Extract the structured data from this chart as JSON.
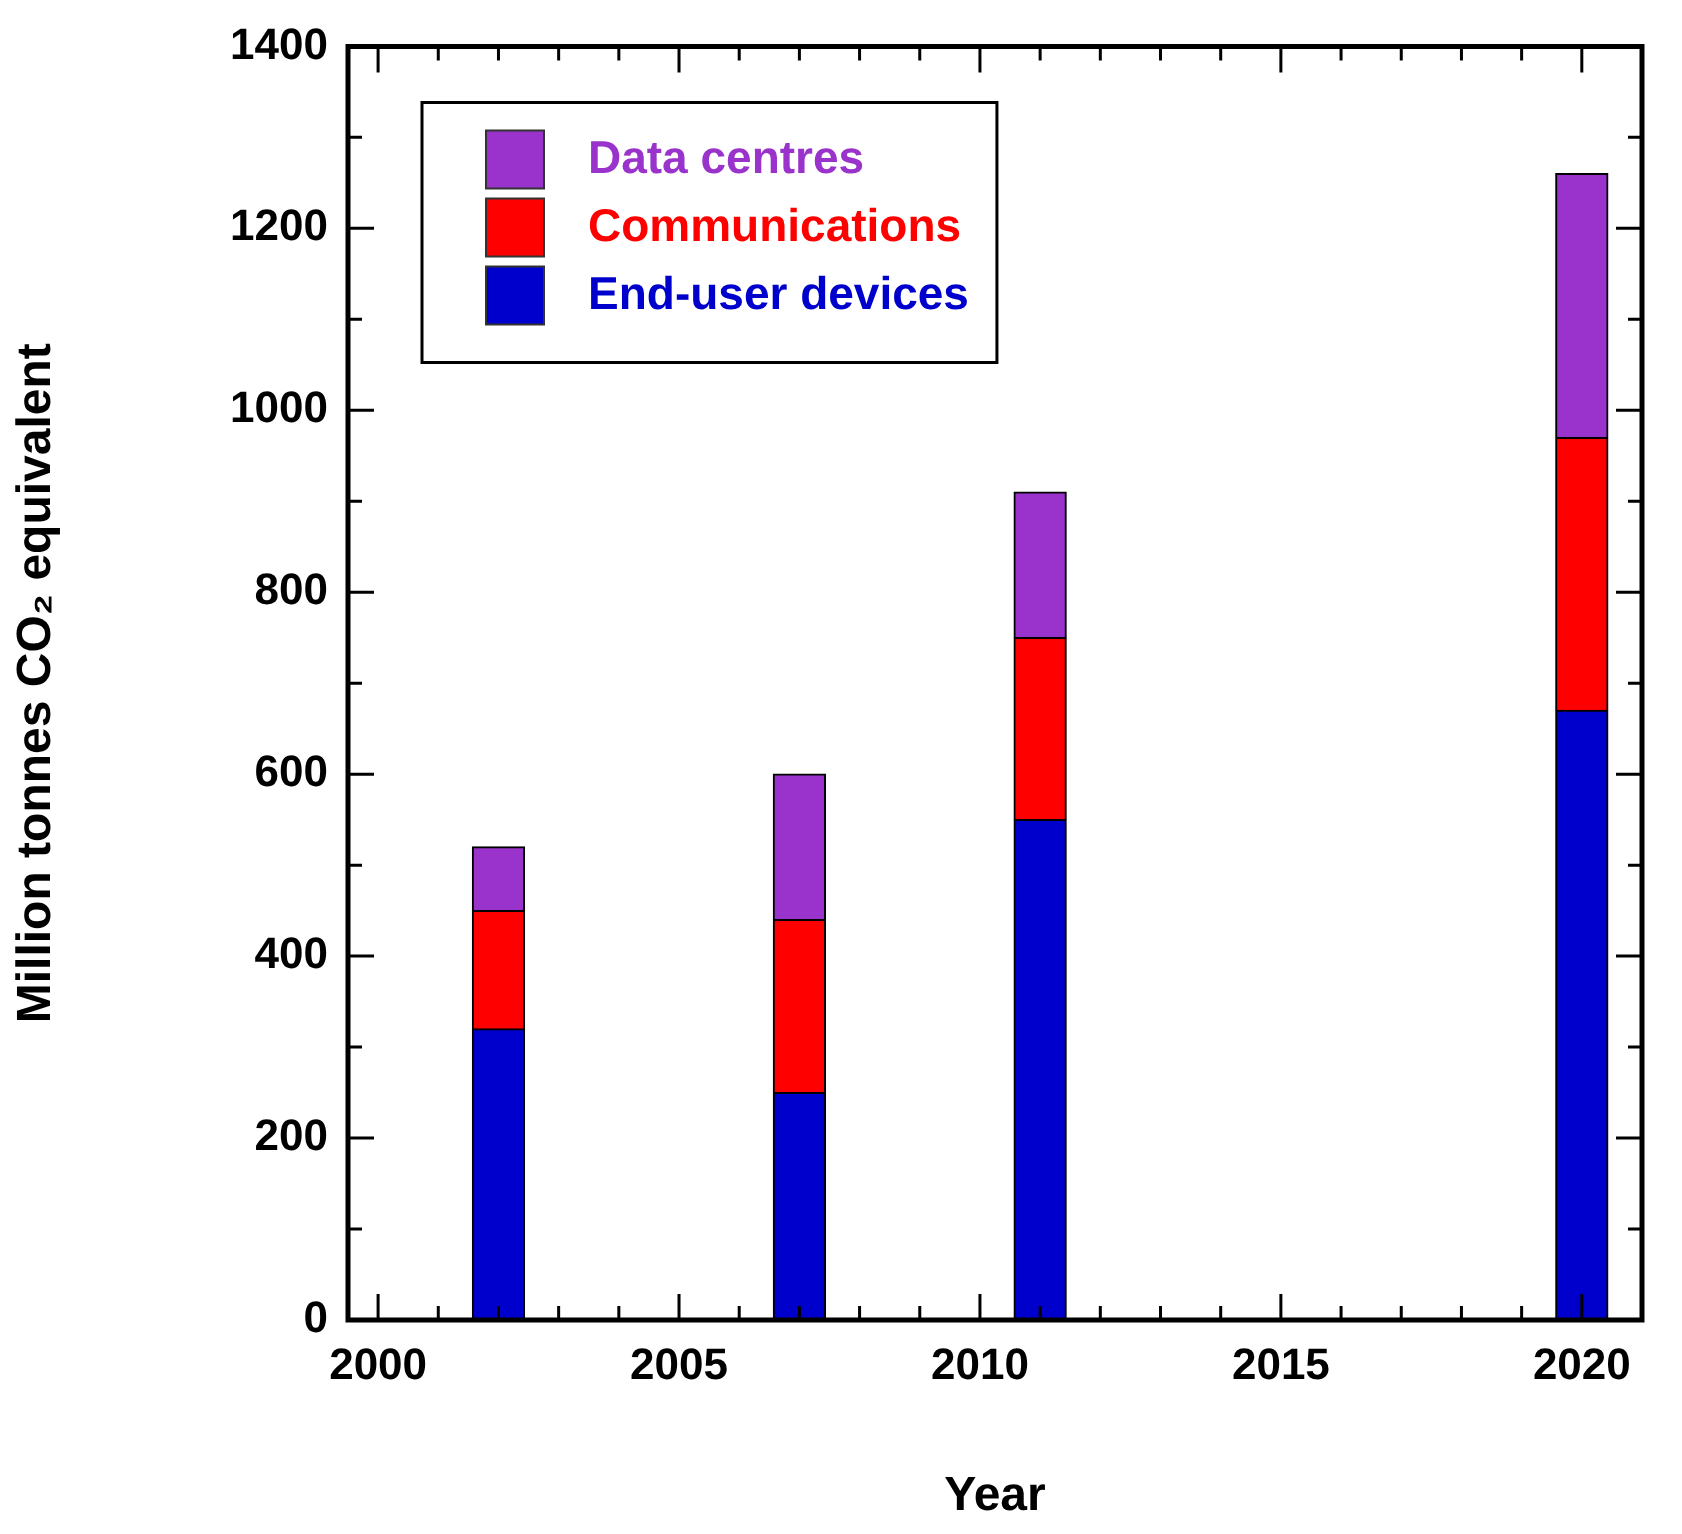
{
  "chart_data": {
    "type": "bar",
    "stacked": true,
    "xlabel": "Year",
    "ylabel": "Million tonnes CO₂ equivalent",
    "x": [
      2002,
      2007,
      2011,
      2020
    ],
    "series": [
      {
        "name": "End-user devices",
        "color": "#0000cc",
        "values": [
          320,
          250,
          550,
          670
        ]
      },
      {
        "name": "Communications",
        "color": "#ff0000",
        "values": [
          130,
          190,
          200,
          300
        ]
      },
      {
        "name": "Data centres",
        "color": "#9933cc",
        "values": [
          70,
          160,
          160,
          290
        ]
      }
    ],
    "xlim": [
      1999.5,
      2021
    ],
    "xticks": [
      2000,
      {
        "value": 2001,
        "label": null
      },
      {
        "value": 2002,
        "label": null
      },
      {
        "value": 2003,
        "label": null
      },
      {
        "value": 2004,
        "label": null
      },
      2005,
      {
        "value": 2006,
        "label": null
      },
      {
        "value": 2007,
        "label": null
      },
      {
        "value": 2008,
        "label": null
      },
      {
        "value": 2009,
        "label": null
      },
      2010,
      {
        "value": 2011,
        "label": null
      },
      {
        "value": 2012,
        "label": null
      },
      {
        "value": 2013,
        "label": null
      },
      {
        "value": 2014,
        "label": null
      },
      2015,
      {
        "value": 2016,
        "label": null
      },
      {
        "value": 2017,
        "label": null
      },
      {
        "value": 2018,
        "label": null
      },
      {
        "value": 2019,
        "label": null
      },
      2020,
      {
        "value": 2021,
        "label": null
      }
    ],
    "ylim": [
      0,
      1400
    ],
    "yticks": [
      0,
      {
        "value": 100,
        "label": null
      },
      200,
      {
        "value": 300,
        "label": null
      },
      400,
      {
        "value": 500,
        "label": null
      },
      600,
      {
        "value": 700,
        "label": null
      },
      800,
      {
        "value": 900,
        "label": null
      },
      1000,
      {
        "value": 1100,
        "label": null
      },
      1200,
      {
        "value": 1300,
        "label": null
      },
      1400
    ],
    "legend": "top left",
    "grid": false
  }
}
